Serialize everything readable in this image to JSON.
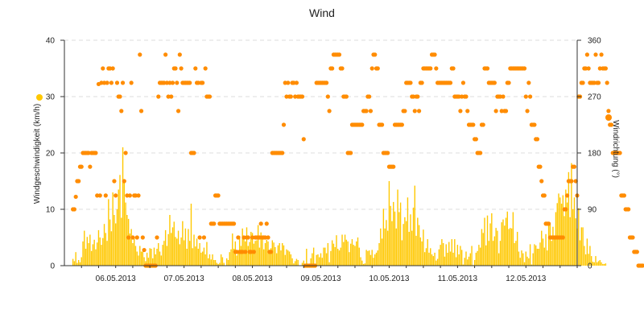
{
  "chart_data": {
    "type": "bar",
    "title": "Wind",
    "x": {
      "type": "time",
      "range": [
        "2013-05-05T18:00",
        "2013-05-13T06:00"
      ],
      "tick_labels": [
        "06.05.2013",
        "07.05.2013",
        "08.05.2013",
        "09.05.2013",
        "10.05.2013",
        "11.05.2013",
        "12.05.2013"
      ],
      "tick_dates": [
        "2013-05-06",
        "2013-05-07",
        "2013-05-08",
        "2013-05-09",
        "2013-05-10",
        "2013-05-11",
        "2013-05-12"
      ]
    },
    "y_left": {
      "label": "Windgeschwindigkeit (km/h)",
      "range": [
        0,
        40
      ],
      "ticks": [
        "0",
        "10",
        "20",
        "30",
        "40"
      ]
    },
    "y_right": {
      "label": "Windrichtung (°)",
      "range": [
        0,
        360
      ],
      "ticks": [
        "0",
        "90",
        "180",
        "270",
        "360"
      ]
    },
    "grid": "horizontal dashed",
    "legend": "axis-title markers (left: yellow, right: orange)",
    "colors": {
      "speed": "#FFC800",
      "direction": "#FF8C00",
      "grid": "#dddddd",
      "axis": "#333333"
    },
    "series": [
      {
        "type": "bar",
        "axis": "left",
        "x_start": "2013-05-05T21:00",
        "step_minutes": 30,
        "values": [
          1.2,
          0.8,
          2.4,
          0.5,
          1.0,
          0.6,
          1.5,
          4.3,
          6.2,
          3.0,
          5.1,
          4.0,
          5.5,
          2.6,
          3.8,
          4.6,
          2.9,
          4.1,
          6.3,
          5.0,
          3.7,
          4.9,
          7.4,
          5.8,
          4.4,
          11.8,
          8.2,
          6.1,
          13.0,
          9.0,
          7.5,
          10.0,
          13.5,
          16.1,
          8.5,
          21.0,
          15.1,
          11.2,
          9.0,
          8.3,
          5.7,
          6.5,
          4.0,
          5.0,
          3.5,
          2.5,
          1.8,
          3.5,
          2.5,
          2.5,
          1.5,
          0.8,
          2.3,
          1.4,
          3.1,
          3.0,
          1.3,
          3.2,
          2.0,
          3.0,
          4.0,
          2.5,
          1.8,
          3.7,
          4.4,
          6.3,
          3.5,
          5.6,
          9.0,
          5.8,
          6.8,
          7.8,
          5.1,
          4.8,
          6.2,
          3.8,
          5.0,
          7.9,
          4.5,
          6.6,
          3.0,
          6.5,
          4.4,
          11.0,
          3.1,
          5.5,
          3.4,
          4.8,
          3.0,
          4.0,
          2.3,
          2.5,
          3.2,
          2.0,
          4.2,
          1.3,
          2.0,
          1.1,
          2.0,
          1.0,
          1.0,
          0.5,
          0.3,
          0.5,
          2.0,
          1.5,
          0.5,
          0.0,
          1.3,
          1.0,
          2.4,
          2.9,
          5.7,
          3.0,
          4.3,
          1.8,
          2.5,
          5.3,
          3.5,
          6.6,
          4.9,
          4.3,
          6.8,
          3.5,
          4.2,
          6.0,
          5.8,
          3.9,
          4.4,
          4.5,
          7.2,
          3.2,
          5.9,
          5.1,
          2.9,
          4.0,
          4.6,
          4.3,
          2.2,
          3.1,
          4.5,
          4.1,
          3.3,
          2.2,
          3.6,
          4.0,
          2.7,
          4.0,
          3.6,
          1.9,
          2.9,
          2.7,
          2.5,
          2.0,
          1.3,
          0.4,
          0.8,
          1.2,
          1.0,
          0.0,
          0.0,
          0.5,
          0.9,
          0.0,
          3.0,
          0.0,
          0.2,
          1.3,
          2.2,
          3.2,
          0.3,
          1.9,
          2.0,
          1.5,
          2.2,
          1.4,
          3.2,
          3.2,
          2.2,
          4.0,
          0.6,
          2.6,
          4.5,
          3.9,
          3.3,
          5.4,
          3.0,
          2.7,
          3.2,
          5.5,
          4.2,
          5.5,
          4.6,
          4.3,
          2.4,
          3.9,
          4.7,
          3.7,
          3.5,
          4.3,
          5.0,
          3.2,
          1.5,
          0.9,
          0.3,
          0.4,
          2.8,
          2.6,
          2.7,
          1.9,
          2.8,
          1.4,
          2.0,
          2.3,
          2.7,
          4.0,
          6.6,
          4.8,
          10.1,
          6.6,
          8.1,
          6.2,
          15.0,
          10.6,
          7.9,
          11.3,
          9.6,
          6.6,
          13.5,
          9.5,
          11.2,
          4.5,
          7.4,
          8.6,
          7.9,
          12.1,
          6.0,
          9.1,
          6.2,
          10.3,
          14.2,
          5.3,
          8.5,
          7.2,
          5.0,
          4.3,
          6.4,
          2.4,
          3.1,
          4.7,
          2.3,
          3.1,
          2.0,
          1.7,
          2.3,
          0.9,
          1.2,
          2.9,
          3.7,
          4.7,
          4.0,
          1.6,
          3.8,
          2.3,
          4.2,
          2.5,
          4.7,
          2.3,
          4.7,
          1.5,
          3.7,
          2.0,
          3.5,
          2.8,
          0.2,
          1.4,
          2.5,
          1.1,
          1.6,
          2.2,
          3.5,
          0.1,
          1.0,
          2.3,
          2.6,
          3.7,
          3.2,
          6.5,
          5.8,
          8.5,
          3.6,
          8.9,
          4.4,
          7.5,
          9.3,
          4.4,
          5.2,
          6.7,
          6.2,
          2.2,
          4.4,
          7.7,
          8.2,
          7.1,
          8.5,
          9.6,
          6.5,
          6.7,
          6.6,
          9.5,
          4.0,
          4.4,
          6.0,
          2.5,
          1.4,
          2.7,
          2.2,
          0.6,
          2.5,
          1.6,
          1.3,
          3.8,
          0.2,
          2.2,
          3.8,
          3.6,
          3.0,
          3.0,
          4.1,
          6.2,
          4.8,
          3.2,
          5.6,
          2.7,
          7.5,
          7.3,
          4.4,
          6.9,
          4.9,
          9.5,
          11.1,
          12.8,
          12.1,
          11.0,
          12.5,
          8.8,
          13.5,
          11.2,
          16.6,
          8.6,
          18.2,
          10.0,
          12.1,
          8.4,
          6.6,
          10.2,
          4.5,
          6.8,
          6.8,
          3.5,
          2.0,
          4.8,
          2.1,
          3.5,
          1.7,
          0.7,
          0.6,
          1.7,
          0.6,
          0.8,
          1.0,
          0.6,
          0.3,
          0.3,
          0.4,
          0.0,
          0.0,
          0.0,
          0.0
        ]
      },
      {
        "type": "scatter",
        "axis": "right",
        "x_start": "2013-05-05T21:00",
        "step_minutes": 30,
        "values": [
          90,
          90,
          110,
          135,
          135,
          158,
          158,
          180,
          180,
          180,
          180,
          180,
          158,
          180,
          180,
          180,
          180,
          112,
          290,
          112,
          292,
          315,
          292,
          112,
          292,
          315,
          315,
          292,
          315,
          135,
          112,
          292,
          270,
          270,
          247,
          292,
          135,
          180,
          112,
          45,
          112,
          292,
          45,
          112,
          112,
          45,
          112,
          337,
          247,
          45,
          25,
          0,
          0,
          0,
          0,
          0,
          0,
          0,
          0,
          45,
          270,
          292,
          292,
          292,
          292,
          337,
          292,
          270,
          292,
          270,
          292,
          315,
          315,
          292,
          247,
          337,
          315,
          292,
          292,
          292,
          292,
          292,
          292,
          180,
          180,
          180,
          315,
          292,
          292,
          45,
          292,
          292,
          45,
          315,
          270,
          270,
          270,
          67,
          67,
          67,
          112,
          112,
          112,
          67,
          67,
          67,
          67,
          67,
          67,
          67,
          67,
          67,
          67,
          67,
          22,
          22,
          45,
          22,
          22,
          22,
          45,
          22,
          45,
          45,
          22,
          22,
          45,
          22,
          45,
          45,
          45,
          45,
          67,
          45,
          45,
          45,
          67,
          45,
          22,
          22,
          180,
          180,
          180,
          180,
          180,
          180,
          180,
          180,
          225,
          292,
          270,
          292,
          270,
          270,
          292,
          292,
          270,
          292,
          270,
          270,
          270,
          270,
          202,
          0,
          0,
          0,
          0,
          0,
          0,
          0,
          0,
          292,
          292,
          292,
          292,
          292,
          292,
          292,
          292,
          270,
          247,
          315,
          315,
          337,
          337,
          337,
          337,
          337,
          315,
          315,
          270,
          270,
          270,
          180,
          180,
          180,
          225,
          225,
          225,
          225,
          225,
          225,
          225,
          225,
          247,
          247,
          247,
          270,
          270,
          247,
          315,
          337,
          337,
          315,
          315,
          225,
          225,
          225,
          180,
          180,
          180,
          180,
          158,
          158,
          158,
          158,
          225,
          225,
          225,
          225,
          225,
          225,
          247,
          247,
          292,
          292,
          292,
          292,
          270,
          270,
          247,
          270,
          270,
          247,
          292,
          292,
          315,
          315,
          315,
          315,
          315,
          315,
          337,
          337,
          337,
          315,
          292,
          292,
          292,
          292,
          292,
          292,
          292,
          292,
          292,
          292,
          315,
          315,
          270,
          270,
          270,
          270,
          247,
          270,
          292,
          270,
          270,
          247,
          225,
          225,
          225,
          225,
          202,
          202,
          180,
          180,
          180,
          225,
          225,
          315,
          315,
          315,
          292,
          292,
          292,
          292,
          292,
          247,
          270,
          270,
          270,
          247,
          270,
          247,
          247,
          292,
          292,
          315,
          315,
          315,
          315,
          315,
          315,
          315,
          315,
          315,
          315,
          315,
          270,
          247,
          292,
          270,
          225,
          225,
          225,
          202,
          202,
          158,
          158,
          135,
          112,
          112,
          67,
          67,
          67,
          45,
          45,
          45,
          45,
          45,
          45,
          45,
          45,
          45,
          45,
          90,
          90,
          112,
          135,
          135,
          135,
          158,
          158,
          135,
          112,
          270,
          270,
          292,
          292,
          315,
          315,
          337,
          315,
          292,
          292,
          292,
          292,
          337,
          292,
          292,
          315,
          337,
          315,
          315,
          315,
          292,
          247,
          225,
          225,
          180,
          180,
          180,
          180,
          180,
          180,
          112,
          112,
          112,
          90,
          90,
          90,
          45,
          45,
          45,
          22,
          22,
          22,
          0,
          0,
          0,
          0
        ]
      }
    ]
  }
}
